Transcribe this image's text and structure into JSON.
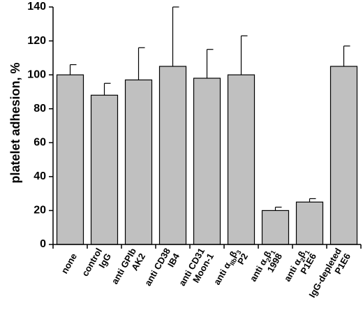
{
  "chart_data": {
    "type": "bar",
    "ylabel": "platelet adhesion, %",
    "xlabel": "",
    "ylim": [
      0,
      140
    ],
    "yticks": [
      0,
      20,
      40,
      60,
      80,
      100,
      120,
      140
    ],
    "grid": false,
    "bar_color": "#c0c0c0",
    "categories": [
      {
        "lines": [
          "none"
        ]
      },
      {
        "lines": [
          "control",
          "IgG"
        ]
      },
      {
        "lines": [
          "anti GPIb",
          "AK2"
        ]
      },
      {
        "lines": [
          "anti CD38",
          "IB4"
        ]
      },
      {
        "lines": [
          "anti CD31",
          "Moon-1"
        ]
      },
      {
        "lines": [
          "anti α",
          "IIb",
          "β",
          "3",
          "P2"
        ],
        "math": true,
        "key": "aIIbb3"
      },
      {
        "lines": [
          "anti α",
          "2",
          "β",
          "1",
          "1998"
        ],
        "math": true,
        "key": "a2b1"
      },
      {
        "lines": [
          "anti α",
          "2",
          "β",
          "1",
          "P1E6"
        ],
        "math": true,
        "key": "a2b1"
      },
      {
        "lines": [
          "IgG-depleted",
          "P1E6"
        ]
      }
    ],
    "values": [
      100,
      88,
      97,
      105,
      98,
      100,
      20,
      25,
      105
    ],
    "errors": [
      6,
      7,
      19,
      35,
      17,
      23,
      2,
      2,
      12
    ]
  }
}
